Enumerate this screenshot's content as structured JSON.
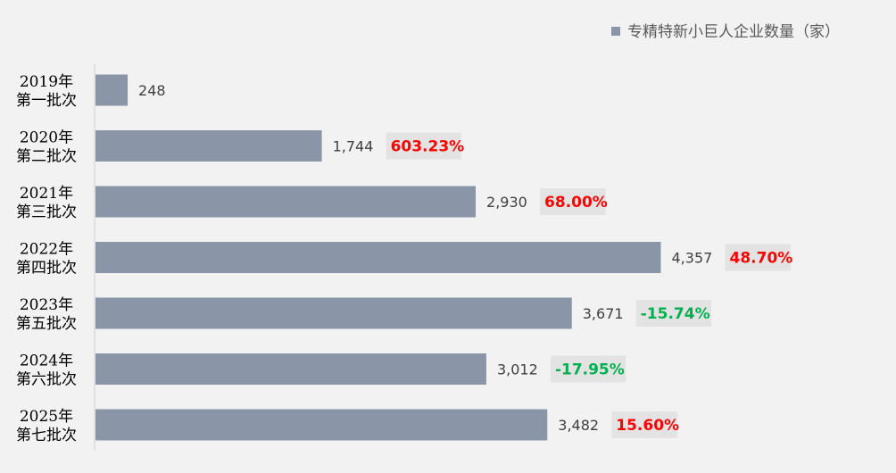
{
  "chart_data": {
    "type": "bar",
    "orientation": "horizontal",
    "legend": {
      "label": "专精特新小巨人企业数量（家）",
      "placement": "top-right"
    },
    "categories": [
      [
        "2019年",
        "第一批次"
      ],
      [
        "2020年",
        "第二批次"
      ],
      [
        "2021年",
        "第三批次"
      ],
      [
        "2022年",
        "第四批次"
      ],
      [
        "2023年",
        "第五批次"
      ],
      [
        "2024年",
        "第六批次"
      ],
      [
        "2025年",
        "第七批次"
      ]
    ],
    "series": [
      {
        "name": "专精特新小巨人企业数量（家）",
        "values": [
          248,
          1744,
          2930,
          4357,
          3671,
          3012,
          3482
        ],
        "value_labels": [
          "248",
          "1,744",
          "2,930",
          "4,357",
          "3,671",
          "3,012",
          "3,482"
        ]
      }
    ],
    "growth_labels": [
      "",
      "603.23%",
      "68.00%",
      "48.70%",
      "-15.74%",
      "-17.95%",
      "15.60%"
    ],
    "xlim": [
      0,
      4700
    ],
    "grid": false,
    "colors": {
      "bar": "#8a96a8",
      "positive": "#ff0000",
      "negative": "#00b050",
      "label_bg": "#e3e3e3",
      "axis": "#d0d0d0"
    }
  }
}
